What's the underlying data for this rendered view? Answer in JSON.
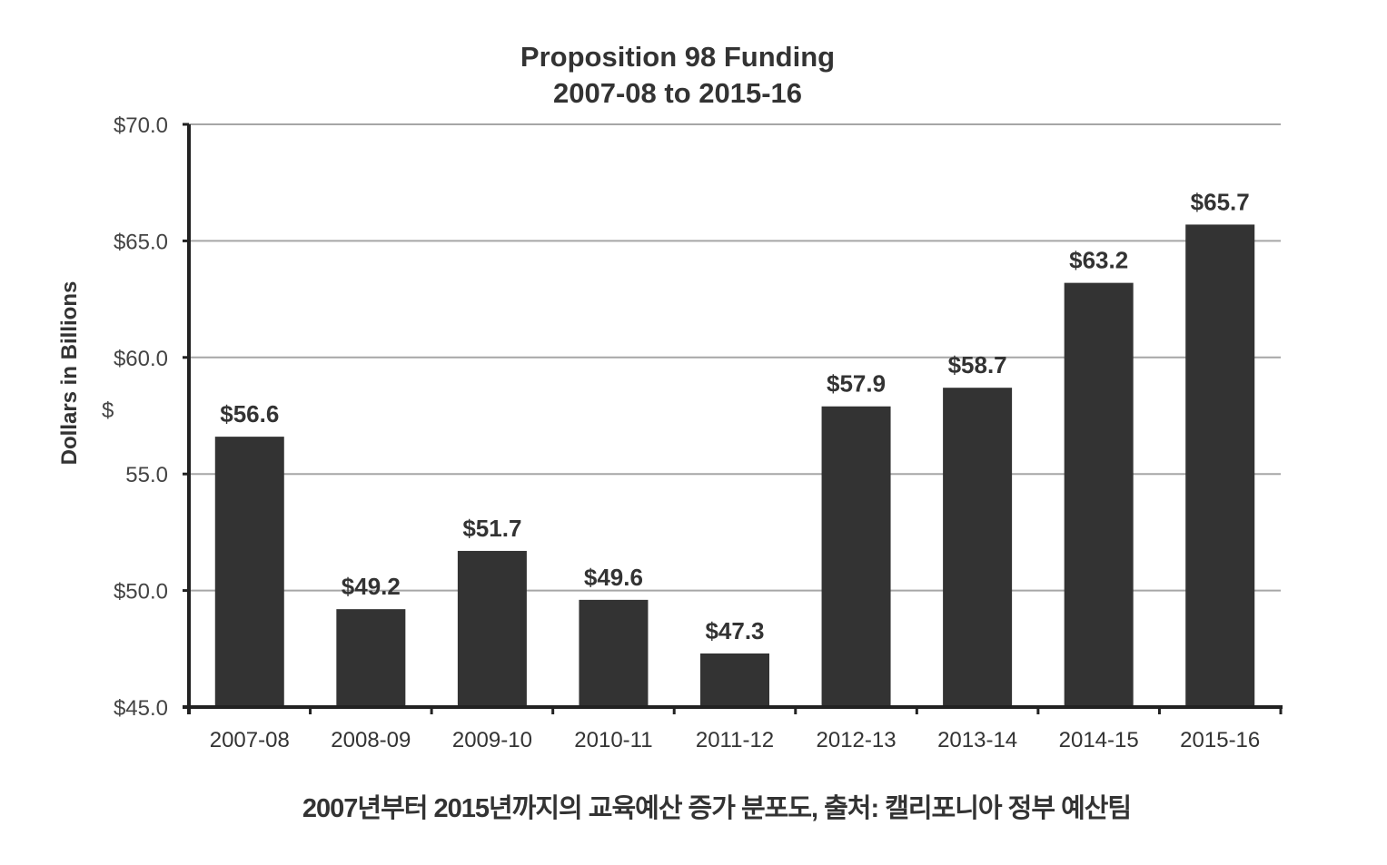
{
  "chart_data": {
    "type": "bar",
    "title": "Proposition 98 Funding",
    "subtitle": "2007-08 to 2015-16",
    "xlabel": "",
    "ylabel": "Dollars in Billions",
    "ylim": [
      45,
      70
    ],
    "yticks": [
      45,
      50,
      55,
      60,
      65,
      70
    ],
    "ytick_labels": [
      "$45.0",
      "$50.0",
      "55.0",
      "$60.0",
      "$65.0",
      "$70.0"
    ],
    "stray_ytick_text": "$",
    "grid": true,
    "categories": [
      "2007-08",
      "2008-09",
      "2009-10",
      "2010-11",
      "2011-12",
      "2012-13",
      "2013-14",
      "2014-15",
      "2015-16"
    ],
    "values": [
      56.6,
      49.2,
      51.7,
      49.6,
      47.3,
      57.9,
      58.7,
      63.2,
      65.7
    ],
    "data_labels": [
      "$56.6",
      "$49.2",
      "$51.7",
      "$49.6",
      "$47.3",
      "$57.9",
      "$58.7",
      "$63.2",
      "$65.7"
    ],
    "bar_color": "#333333",
    "grid_color": "#a6a6a6"
  },
  "caption": "2007년부터 2015년까지의 교육예산 증가 분포도, 출처: 캘리포니아 정부 예산팀"
}
